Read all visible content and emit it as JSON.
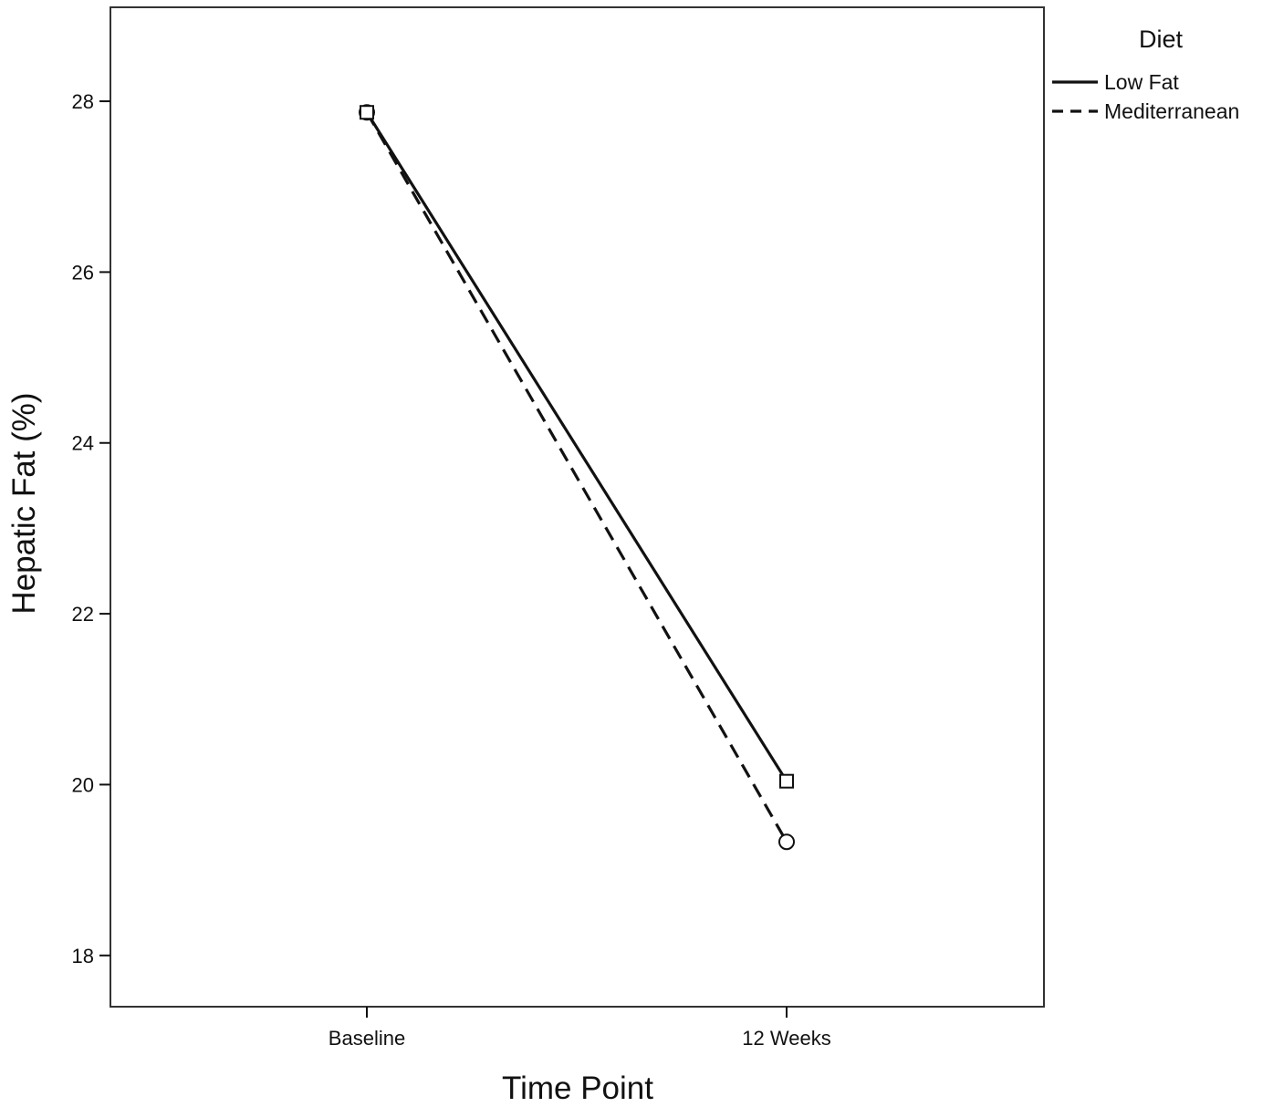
{
  "chart_data": {
    "type": "line",
    "categories": [
      "Baseline",
      "12 Weeks"
    ],
    "series": [
      {
        "name": "Low Fat",
        "values": [
          27.87,
          20.04
        ],
        "line_style": "solid",
        "marker": "square"
      },
      {
        "name": "Mediterranean",
        "values": [
          27.87,
          19.33
        ],
        "line_style": "dashed",
        "marker": "circle"
      }
    ],
    "title": "",
    "xlabel": "Time Point",
    "ylabel": "Hepatic Fat (%)",
    "ylim": [
      17.4,
      29.1
    ],
    "yticks": [
      18,
      20,
      22,
      24,
      26,
      28
    ],
    "ytick_labels": [
      "18",
      "20",
      "22",
      "24",
      "26",
      "28"
    ],
    "grid": false,
    "legend": {
      "title": "Diet",
      "placement": "outside-right-top"
    },
    "colors": {
      "line": "#111111",
      "frame": "#333333",
      "background": "#ffffff"
    }
  }
}
